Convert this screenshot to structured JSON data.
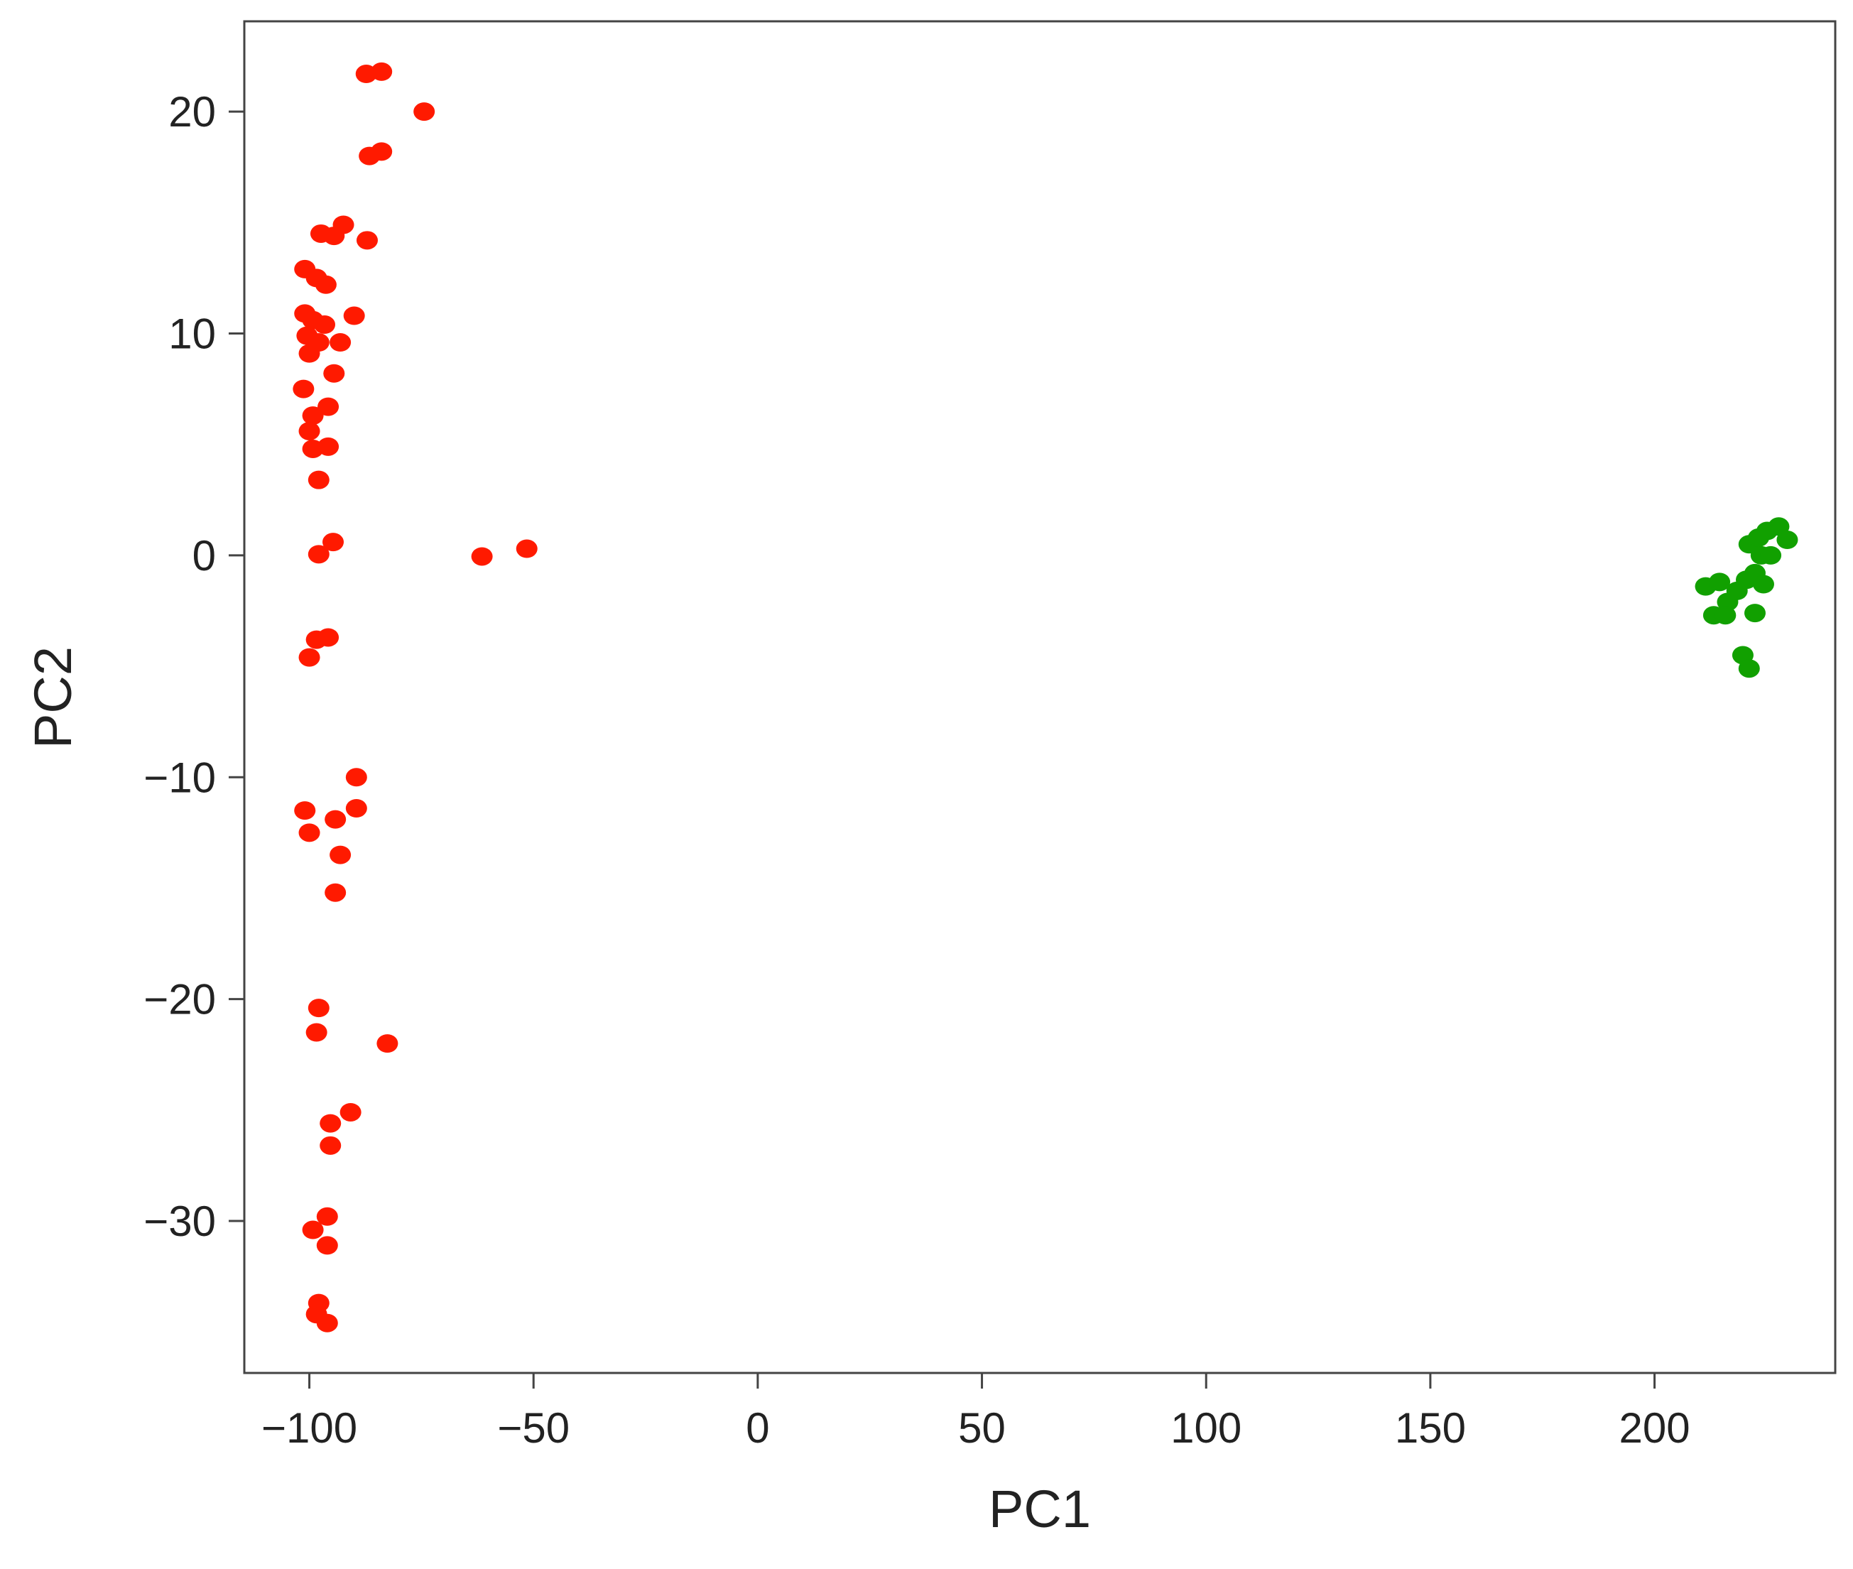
{
  "chart_data": {
    "type": "scatter",
    "xlabel": "PC1",
    "ylabel": "PC2",
    "xlim": [
      -114.5,
      240.3
    ],
    "ylim": [
      -36.85,
      24.07
    ],
    "xticks": [
      {
        "value": -100,
        "label": "−100"
      },
      {
        "value": -50,
        "label": "−50"
      },
      0,
      50,
      100,
      150,
      200
    ],
    "yticks": [
      {
        "value": -30,
        "label": "−30"
      },
      {
        "value": -20,
        "label": "−20"
      },
      {
        "value": -10,
        "label": "−10"
      },
      0,
      10,
      20
    ],
    "series": [
      {
        "color": "#ff1a00",
        "x": [
          -87.3,
          -83.9,
          -74.4,
          -86.6,
          -83.9,
          -97.4,
          -92.4,
          -94.5,
          -87.1,
          -101,
          -98.4,
          -96.3,
          -90,
          -101,
          -99.2,
          -96.6,
          -100.5,
          -97.9,
          -93.1,
          -100,
          -94.5,
          -101.3,
          -95.8,
          -99.2,
          -100,
          -95.8,
          -99.2,
          -97.9,
          -94.7,
          -97.9,
          -61.5,
          -51.5,
          -95.8,
          -98.4,
          -100,
          -89.5,
          -89.5,
          -101,
          -94.2,
          -100,
          -93.1,
          -94.2,
          -97.9,
          -98.4,
          -82.6,
          -90.8,
          -95.3,
          -95.3,
          -96,
          -99.2,
          -96,
          -97.9,
          -98.4,
          -96
        ],
        "values": [
          21.7,
          21.8,
          20,
          18,
          18.2,
          14.5,
          14.9,
          14.4,
          14.2,
          12.9,
          12.5,
          12.2,
          10.8,
          10.9,
          10.6,
          10.4,
          9.9,
          9.6,
          9.6,
          9.1,
          8.2,
          7.5,
          6.7,
          6.3,
          5.6,
          4.9,
          4.8,
          3.4,
          0.6,
          0.05,
          -0.05,
          0.3,
          -3.7,
          -3.8,
          -4.6,
          -10,
          -11.4,
          -11.5,
          -11.9,
          -12.5,
          -13.5,
          -15.2,
          -20.4,
          -21.5,
          -22,
          -25.1,
          -25.6,
          -26.6,
          -29.8,
          -30.4,
          -31.1,
          -33.7,
          -34.2,
          -34.6
        ]
      },
      {
        "color": "#11a000",
        "x": [
          211.4,
          214.5,
          213.2,
          216.3,
          218.4,
          220.5,
          222.4,
          223.8,
          221.1,
          225.1,
          227.7,
          229.6,
          225.9,
          222.4,
          219.7,
          221.1,
          215.8,
          224.3,
          223.2
        ],
        "values": [
          -1.4,
          -1.2,
          -2.7,
          -2.1,
          -1.6,
          -1.1,
          -0.8,
          0,
          0.5,
          1.1,
          1.3,
          0.7,
          0,
          -2.6,
          -4.5,
          -5.1,
          -2.7,
          -1.3,
          0.8
        ]
      }
    ]
  }
}
